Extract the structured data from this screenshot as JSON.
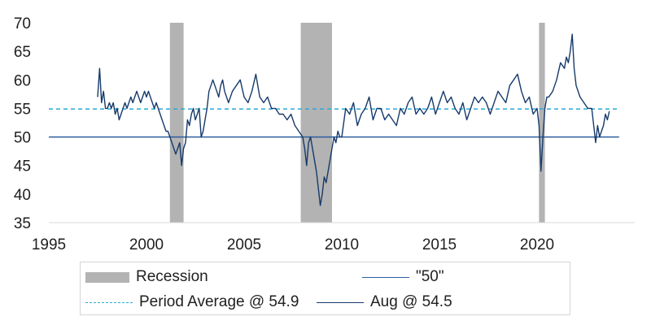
{
  "chart_data": {
    "type": "line",
    "xlim": [
      1995,
      2024.5
    ],
    "ylim": [
      35,
      70
    ],
    "xticks": [
      "1995",
      "2000",
      "2005",
      "2010",
      "2015",
      "2020"
    ],
    "yticks": [
      "35",
      "40",
      "45",
      "50",
      "55",
      "60",
      "65",
      "70"
    ],
    "grid": false,
    "legend_position": "bottom",
    "recessions": [
      {
        "start": 2001.2,
        "end": 2001.9
      },
      {
        "start": 2007.9,
        "end": 2009.5
      },
      {
        "start": 2020.1,
        "end": 2020.4
      }
    ],
    "reference_lines": [
      {
        "value": 50,
        "label": "\"50\"",
        "style": "solid",
        "color": "#2e5d9f"
      },
      {
        "value": 54.9,
        "label": "Period Average @ 54.9",
        "style": "dashed",
        "color": "#29a9d6"
      }
    ],
    "recession_label": "Recession",
    "recession_color": "#b3b3b3",
    "series": [
      {
        "name": "Aug @ 54.5",
        "color": "#163a6b",
        "x": [
          1997.5,
          1997.6,
          1997.7,
          1997.8,
          1997.9,
          1998.0,
          1998.1,
          1998.2,
          1998.3,
          1998.4,
          1998.5,
          1998.6,
          1998.7,
          1998.8,
          1998.9,
          1999.0,
          1999.1,
          1999.2,
          1999.3,
          1999.4,
          1999.5,
          1999.6,
          1999.7,
          1999.8,
          1999.9,
          2000.0,
          2000.1,
          2000.2,
          2000.3,
          2000.4,
          2000.5,
          2000.6,
          2000.7,
          2000.8,
          2000.9,
          2001.0,
          2001.1,
          2001.2,
          2001.3,
          2001.4,
          2001.5,
          2001.6,
          2001.7,
          2001.8,
          2001.9,
          2002.0,
          2002.1,
          2002.2,
          2002.3,
          2002.4,
          2002.5,
          2002.6,
          2002.7,
          2002.8,
          2002.9,
          2003.0,
          2003.1,
          2003.2,
          2003.3,
          2003.4,
          2003.5,
          2003.6,
          2003.7,
          2003.8,
          2003.9,
          2004.0,
          2004.2,
          2004.4,
          2004.6,
          2004.8,
          2005.0,
          2005.2,
          2005.4,
          2005.6,
          2005.8,
          2006.0,
          2006.2,
          2006.4,
          2006.6,
          2006.8,
          2007.0,
          2007.2,
          2007.4,
          2007.6,
          2007.8,
          2008.0,
          2008.1,
          2008.2,
          2008.3,
          2008.4,
          2008.5,
          2008.6,
          2008.7,
          2008.8,
          2008.9,
          2009.0,
          2009.1,
          2009.2,
          2009.3,
          2009.4,
          2009.5,
          2009.6,
          2009.7,
          2009.8,
          2009.9,
          2010.0,
          2010.2,
          2010.4,
          2010.6,
          2010.8,
          2011.0,
          2011.2,
          2011.4,
          2011.6,
          2011.8,
          2012.0,
          2012.2,
          2012.4,
          2012.6,
          2012.8,
          2013.0,
          2013.2,
          2013.4,
          2013.6,
          2013.8,
          2014.0,
          2014.2,
          2014.4,
          2014.6,
          2014.8,
          2015.0,
          2015.2,
          2015.4,
          2015.6,
          2015.8,
          2016.0,
          2016.2,
          2016.4,
          2016.6,
          2016.8,
          2017.0,
          2017.2,
          2017.4,
          2017.6,
          2017.8,
          2018.0,
          2018.2,
          2018.4,
          2018.6,
          2018.8,
          2019.0,
          2019.2,
          2019.4,
          2019.6,
          2019.8,
          2020.0,
          2020.1,
          2020.2,
          2020.3,
          2020.4,
          2020.5,
          2020.6,
          2020.8,
          2021.0,
          2021.2,
          2021.4,
          2021.5,
          2021.6,
          2021.7,
          2021.8,
          2021.9,
          2022.0,
          2022.2,
          2022.4,
          2022.6,
          2022.8,
          2023.0,
          2023.1,
          2023.2,
          2023.3,
          2023.4,
          2023.5,
          2023.6,
          2023.7
        ],
        "y": [
          57,
          62,
          56,
          58,
          55,
          55,
          56,
          55,
          56,
          54,
          55,
          53,
          54,
          55,
          56,
          55,
          56,
          57,
          56,
          57,
          58,
          57,
          56,
          57,
          58,
          57,
          58,
          57,
          56,
          55,
          56,
          55,
          54,
          53,
          52,
          51,
          51,
          50,
          49,
          48,
          47,
          48,
          49,
          45,
          48,
          49,
          53,
          52,
          54,
          55,
          53,
          54,
          55,
          50,
          51,
          53,
          55,
          58,
          59,
          60,
          59,
          58,
          57,
          59,
          60,
          58,
          56,
          58,
          59,
          60,
          57,
          56,
          58,
          61,
          57,
          56,
          57,
          55,
          55,
          54,
          54,
          53,
          54,
          52,
          51,
          50,
          48,
          45,
          49,
          50,
          48,
          46,
          44,
          41,
          38,
          40,
          43,
          42,
          44,
          46,
          48,
          50,
          49,
          51,
          50,
          50,
          55,
          54,
          56,
          52,
          54,
          55,
          57,
          53,
          55,
          55,
          53,
          54,
          53,
          52,
          55,
          54,
          56,
          57,
          54,
          55,
          54,
          55,
          57,
          54,
          56,
          58,
          56,
          57,
          55,
          54,
          56,
          53,
          55,
          57,
          56,
          57,
          56,
          54,
          56,
          58,
          57,
          56,
          59,
          60,
          61,
          58,
          56,
          57,
          54,
          55,
          52,
          44,
          50,
          55,
          57,
          57,
          58,
          60,
          63,
          62,
          64,
          63,
          65,
          68,
          62,
          59,
          57,
          56,
          55,
          55,
          49,
          52,
          50,
          51,
          52,
          54,
          53,
          54.5
        ]
      }
    ],
    "legend": [
      {
        "label": "Recession",
        "swatch": "rect",
        "color": "#b3b3b3"
      },
      {
        "label": "\"50\"",
        "swatch": "line",
        "color": "#2e5d9f"
      },
      {
        "label": "Period Average @ 54.9",
        "swatch": "dash",
        "color": "#29a9d6"
      },
      {
        "label": "Aug @ 54.5",
        "swatch": "line",
        "color": "#163a6b"
      }
    ]
  }
}
